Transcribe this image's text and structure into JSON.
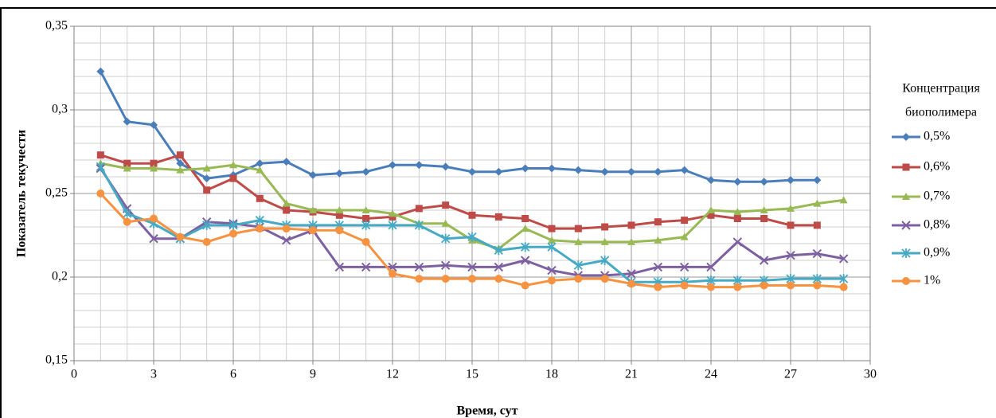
{
  "chart_data": {
    "type": "line",
    "xlabel": "Время, сут",
    "ylabel": "Показатель текучести",
    "legend_title": [
      "Концентрация",
      "биополимера"
    ],
    "legend": "right",
    "grid": true,
    "xminor": 1,
    "yminor": 0.01,
    "x": [
      1,
      2,
      3,
      4,
      5,
      6,
      7,
      8,
      9,
      10,
      11,
      12,
      13,
      14,
      15,
      16,
      17,
      18,
      19,
      20,
      21,
      22,
      23,
      24,
      25,
      26,
      27,
      28,
      29
    ],
    "xlim": [
      0,
      30
    ],
    "xticks": [
      0,
      3,
      6,
      9,
      12,
      15,
      18,
      21,
      24,
      27,
      30
    ],
    "ylim": [
      0.15,
      0.35
    ],
    "yticks": [
      {
        "value": 0.15,
        "label": "0,15"
      },
      {
        "value": 0.2,
        "label": "0,2"
      },
      {
        "value": 0.25,
        "label": "0,25"
      },
      {
        "value": 0.3,
        "label": "0,3"
      },
      {
        "value": 0.35,
        "label": "0,35"
      }
    ],
    "series": [
      {
        "name": "0,5%",
        "color": "#4a7ebb",
        "marker": "diamond",
        "values": [
          0.323,
          0.293,
          0.291,
          0.268,
          0.259,
          0.261,
          0.268,
          0.269,
          0.261,
          0.262,
          0.263,
          0.267,
          0.267,
          0.266,
          0.263,
          0.263,
          0.265,
          0.265,
          0.264,
          0.263,
          0.263,
          0.263,
          0.264,
          0.258,
          0.257,
          0.257,
          0.258,
          0.258,
          null
        ]
      },
      {
        "name": "0,6%",
        "color": "#be4b48",
        "marker": "square",
        "values": [
          0.273,
          0.268,
          0.268,
          0.273,
          0.252,
          0.259,
          0.247,
          0.24,
          0.239,
          0.237,
          0.235,
          0.236,
          0.241,
          0.243,
          0.237,
          0.236,
          0.235,
          0.229,
          0.229,
          0.23,
          0.231,
          0.233,
          0.234,
          0.237,
          0.235,
          0.235,
          0.231,
          0.231,
          null
        ]
      },
      {
        "name": "0,7%",
        "color": "#98b954",
        "marker": "triangle",
        "values": [
          0.268,
          0.265,
          0.265,
          0.264,
          0.265,
          0.267,
          0.264,
          0.244,
          0.24,
          0.24,
          0.24,
          0.238,
          0.232,
          0.232,
          0.222,
          0.217,
          0.229,
          0.222,
          0.221,
          0.221,
          0.221,
          0.222,
          0.224,
          0.24,
          0.239,
          0.24,
          0.241,
          0.244,
          0.246
        ]
      },
      {
        "name": "0,8%",
        "color": "#7d60a0",
        "marker": "x",
        "values": [
          0.265,
          0.241,
          0.223,
          0.223,
          0.233,
          0.232,
          0.23,
          0.222,
          0.228,
          0.206,
          0.206,
          0.206,
          0.206,
          0.207,
          0.206,
          0.206,
          0.21,
          0.204,
          0.201,
          0.201,
          0.202,
          0.206,
          0.206,
          0.206,
          0.221,
          0.21,
          0.213,
          0.214,
          0.211
        ]
      },
      {
        "name": "0,9%",
        "color": "#46aac5",
        "marker": "star",
        "values": [
          0.266,
          0.238,
          0.232,
          0.223,
          0.231,
          0.231,
          0.234,
          0.231,
          0.231,
          0.231,
          0.231,
          0.231,
          0.231,
          0.223,
          0.224,
          0.216,
          0.218,
          0.218,
          0.207,
          0.21,
          0.197,
          0.197,
          0.197,
          0.198,
          0.198,
          0.198,
          0.199,
          0.199,
          0.199
        ]
      },
      {
        "name": "1%",
        "color": "#f69240",
        "marker": "circle",
        "values": [
          0.25,
          0.233,
          0.235,
          0.224,
          0.221,
          0.226,
          0.229,
          0.229,
          0.228,
          0.228,
          0.221,
          0.202,
          0.199,
          0.199,
          0.199,
          0.199,
          0.195,
          0.198,
          0.199,
          0.199,
          0.196,
          0.194,
          0.195,
          0.194,
          0.194,
          0.195,
          0.195,
          0.195,
          0.194
        ]
      }
    ]
  }
}
